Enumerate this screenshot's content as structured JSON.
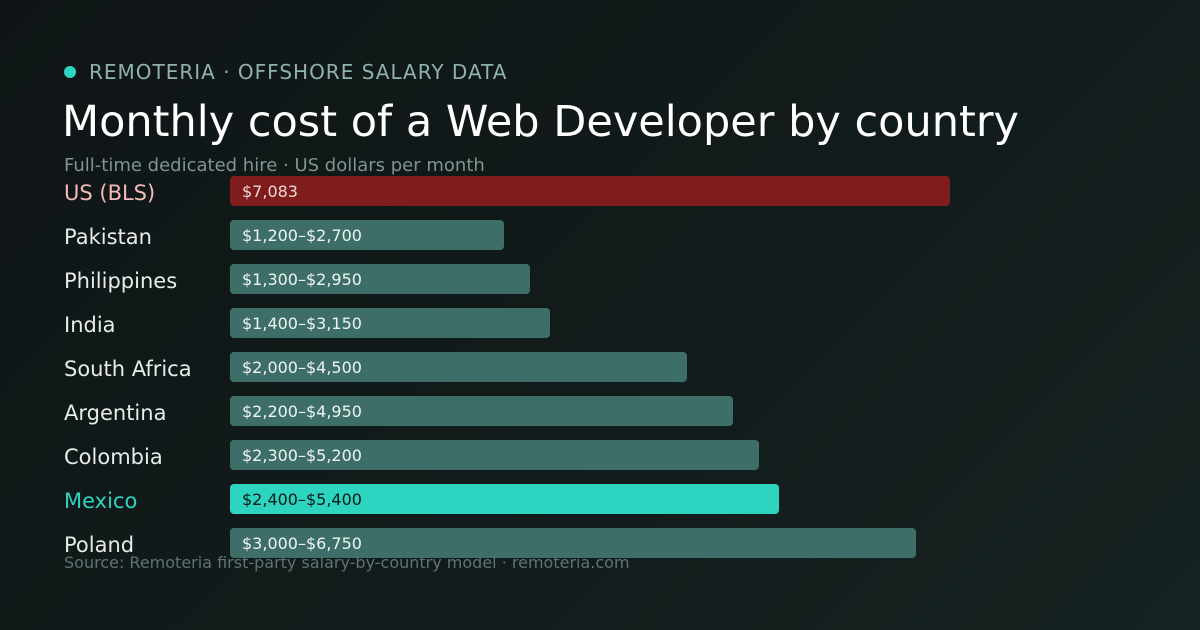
{
  "header": {
    "brand": "REMOTERIA · OFFSHORE SALARY DATA",
    "title": "Monthly cost of a Web Developer by country",
    "subtitle": "Full-time dedicated hire · US dollars per month"
  },
  "footer": {
    "source": "Source: Remoteria first-party salary-by-country model · remoteria.com"
  },
  "colors": {
    "accent": "#2dd4bf",
    "us_bar": "#7f1d1d",
    "default_bar": "#3d6f68"
  },
  "chart_data": {
    "type": "bar",
    "orientation": "horizontal",
    "unit": "USD per month",
    "xlim": [
      0,
      7083
    ],
    "categories": [
      "US (BLS)",
      "Pakistan",
      "Philippines",
      "India",
      "South Africa",
      "Argentina",
      "Colombia",
      "Mexico",
      "Poland"
    ],
    "bars": [
      {
        "label": "US (BLS)",
        "min": null,
        "max": 7083,
        "value_label": "$7,083",
        "highlight": "us"
      },
      {
        "label": "Pakistan",
        "min": 1200,
        "max": 2700,
        "value_label": "$1,200–$2,700",
        "highlight": ""
      },
      {
        "label": "Philippines",
        "min": 1300,
        "max": 2950,
        "value_label": "$1,300–$2,950",
        "highlight": ""
      },
      {
        "label": "India",
        "min": 1400,
        "max": 3150,
        "value_label": "$1,400–$3,150",
        "highlight": ""
      },
      {
        "label": "South Africa",
        "min": 2000,
        "max": 4500,
        "value_label": "$2,000–$4,500",
        "highlight": ""
      },
      {
        "label": "Argentina",
        "min": 2200,
        "max": 4950,
        "value_label": "$2,200–$4,950",
        "highlight": ""
      },
      {
        "label": "Colombia",
        "min": 2300,
        "max": 5200,
        "value_label": "$2,300–$5,200",
        "highlight": ""
      },
      {
        "label": "Mexico",
        "min": 2400,
        "max": 5400,
        "value_label": "$2,400–$5,400",
        "highlight": "mx"
      },
      {
        "label": "Poland",
        "min": 3000,
        "max": 6750,
        "value_label": "$3,000–$6,750",
        "highlight": ""
      }
    ],
    "grid": false,
    "legend": "none"
  }
}
